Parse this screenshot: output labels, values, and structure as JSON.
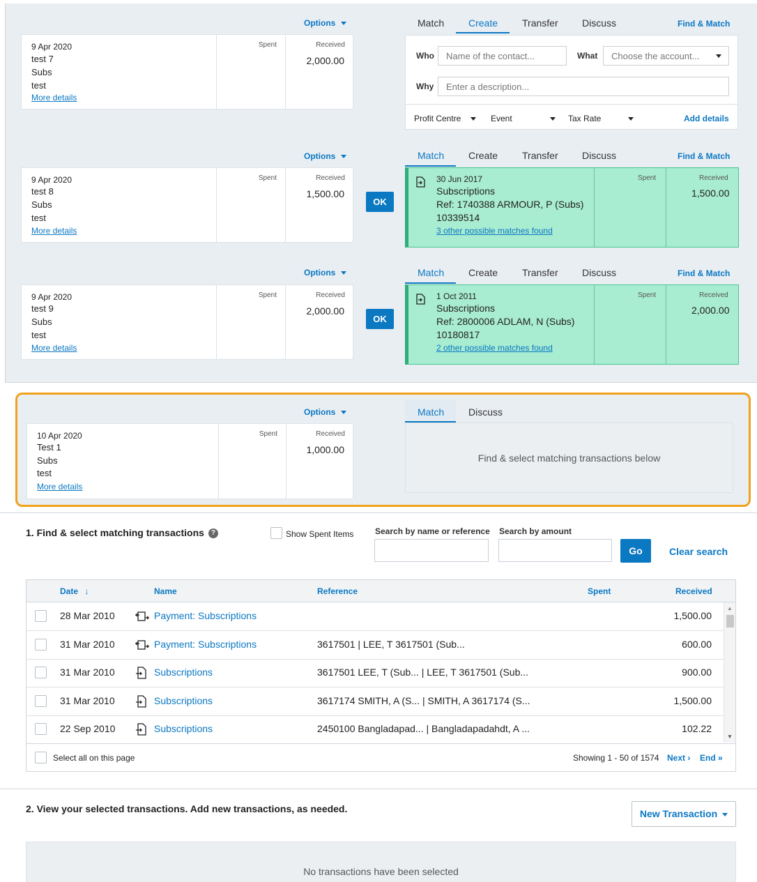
{
  "lines": [
    {
      "options": "Options",
      "date": "9 Apr 2020",
      "payee": "test 7",
      "desc": "Subs",
      "ref": "test",
      "more": "More details",
      "spent_label": "Spent",
      "received_label": "Received",
      "received": "2,000.00",
      "tabs": [
        "Match",
        "Create",
        "Transfer",
        "Discuss"
      ],
      "active_tab": "Create",
      "find_match": "Find & Match",
      "create": {
        "who_label": "Who",
        "who_placeholder": "Name of the contact...",
        "what_label": "What",
        "what_placeholder": "Choose the account...",
        "why_label": "Why",
        "why_placeholder": "Enter a description...",
        "profit_centre": "Profit Centre",
        "event": "Event",
        "tax_rate": "Tax Rate",
        "add_details": "Add details"
      }
    },
    {
      "options": "Options",
      "date": "9 Apr 2020",
      "payee": "test 8",
      "desc": "Subs",
      "ref": "test",
      "more": "More details",
      "spent_label": "Spent",
      "received_label": "Received",
      "received": "1,500.00",
      "tabs": [
        "Match",
        "Create",
        "Transfer",
        "Discuss"
      ],
      "active_tab": "Match",
      "find_match": "Find & Match",
      "ok": "OK",
      "match": {
        "date": "30 Jun 2017",
        "name": "Subscriptions",
        "ref": "Ref: 1740388 ARMOUR, P (Subs)",
        "ref2": "10339514",
        "other": "3 other possible matches found",
        "spent_label": "Spent",
        "received_label": "Received",
        "received": "1,500.00"
      }
    },
    {
      "options": "Options",
      "date": "9 Apr 2020",
      "payee": "test 9",
      "desc": "Subs",
      "ref": "test",
      "more": "More details",
      "spent_label": "Spent",
      "received_label": "Received",
      "received": "2,000.00",
      "tabs": [
        "Match",
        "Create",
        "Transfer",
        "Discuss"
      ],
      "active_tab": "Match",
      "find_match": "Find & Match",
      "ok": "OK",
      "match": {
        "date": "1 Oct 2011",
        "name": "Subscriptions",
        "ref": "Ref: 2800006 ADLAM, N (Subs)",
        "ref2": "10180817",
        "other": "2 other possible matches found",
        "spent_label": "Spent",
        "received_label": "Received",
        "received": "2,000.00"
      }
    },
    {
      "options": "Options",
      "date": "10 Apr 2020",
      "payee": "Test 1",
      "desc": "Subs",
      "ref": "test",
      "more": "More details",
      "spent_label": "Spent",
      "received_label": "Received",
      "received": "1,000.00",
      "tabs": [
        "Match",
        "Discuss"
      ],
      "active_tab": "Match",
      "find_prompt": "Find & select matching transactions below"
    }
  ],
  "find": {
    "title": "1. Find & select matching transactions",
    "show_spent": "Show Spent Items",
    "search_name_label": "Search by name or reference",
    "search_amount_label": "Search by amount",
    "search_name_value": "",
    "search_amount_value": "",
    "go": "Go",
    "clear": "Clear search",
    "columns": {
      "date": "Date",
      "name": "Name",
      "reference": "Reference",
      "spent": "Spent",
      "received": "Received"
    },
    "rows": [
      {
        "date": "28 Mar 2010",
        "icon": "payment-icon",
        "name": "Payment: Subscriptions",
        "reference": "",
        "spent": "",
        "received": "1,500.00"
      },
      {
        "date": "31 Mar 2010",
        "icon": "payment-icon",
        "name": "Payment: Subscriptions",
        "reference": "3617501 | LEE, T 3617501 (Sub...",
        "spent": "",
        "received": "600.00"
      },
      {
        "date": "31 Mar 2010",
        "icon": "receive-icon",
        "name": "Subscriptions",
        "reference": "3617501 LEE, T (Sub...   | LEE, T 3617501 (Sub...",
        "spent": "",
        "received": "900.00"
      },
      {
        "date": "31 Mar 2010",
        "icon": "receive-icon",
        "name": "Subscriptions",
        "reference": "3617174 SMITH, A (S...   | SMITH, A 3617174 (S...",
        "spent": "",
        "received": "1,500.00"
      },
      {
        "date": "22 Sep 2010",
        "icon": "receive-icon",
        "name": "Subscriptions",
        "reference": "2450100 Bangladapad...   | Bangladapadahdt, A ...",
        "spent": "",
        "received": "102.22"
      }
    ],
    "select_all": "Select all on this page",
    "showing": "Showing 1 - 50 of 1574",
    "next": "Next ›",
    "end": "End »"
  },
  "selected": {
    "title": "2. View your selected transactions. Add new transactions, as needed.",
    "new_transaction": "New Transaction",
    "empty": "No transactions have been selected"
  },
  "colors": {
    "accent": "#0b78c2",
    "match_bg": "#a8ecd1",
    "highlight": "#f0a21c"
  }
}
